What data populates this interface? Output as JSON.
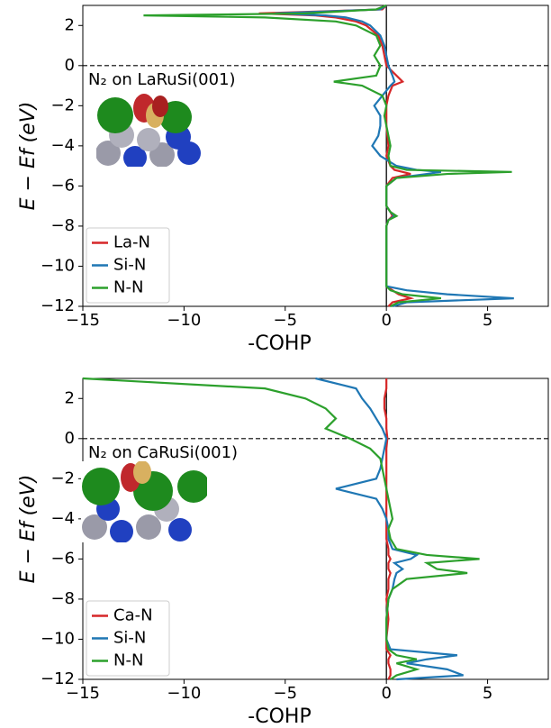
{
  "chart_data": [
    {
      "type": "line",
      "annotation": "N₂ on LaRuSi(001)",
      "xlabel": "-COHP",
      "ylabel": "E − Ef (eV)",
      "xlim": [
        -15,
        8
      ],
      "ylim": [
        -12,
        3
      ],
      "xticks": [
        {
          "value": -15,
          "label": "−15"
        },
        {
          "value": -10,
          "label": "−10"
        },
        {
          "value": -5,
          "label": "−5"
        },
        0,
        5
      ],
      "yticks": [
        {
          "value": -12,
          "label": "−12"
        },
        {
          "value": -10,
          "label": "−10"
        },
        {
          "value": -8,
          "label": "−8"
        },
        {
          "value": -6,
          "label": "−6"
        },
        {
          "value": -4,
          "label": "−4"
        },
        {
          "value": -2,
          "label": "−2"
        },
        0,
        2
      ],
      "legend": "lower left",
      "y": [
        3,
        2.8,
        2.6,
        2.5,
        2.4,
        2.2,
        2,
        1.5,
        1,
        0.5,
        0,
        -0.5,
        -0.8,
        -1,
        -1.5,
        -2,
        -2.5,
        -3,
        -3.5,
        -4,
        -4.5,
        -5,
        -5.2,
        -5.3,
        -5.4,
        -5.6,
        -6,
        -7,
        -7.3,
        -7.5,
        -7.7,
        -8,
        -9,
        -10,
        -11,
        -11.2,
        -11.4,
        -11.6,
        -11.8,
        -12
      ],
      "series": [
        {
          "name": "La-N",
          "color": "#d62728",
          "values": [
            0,
            -0.2,
            -6.3,
            -3.5,
            -2.5,
            -1.5,
            -1,
            -0.4,
            -0.2,
            -0.1,
            0,
            0.5,
            0.8,
            0.3,
            0.1,
            0,
            0,
            0,
            0.05,
            0.1,
            0,
            0.2,
            0.4,
            0.8,
            1.2,
            0.3,
            0,
            0,
            0.2,
            0.3,
            0.1,
            0,
            0,
            0,
            0,
            0.3,
            0.6,
            1.2,
            0.3,
            0.1
          ]
        },
        {
          "name": "Si-N",
          "color": "#1f77b4",
          "values": [
            0,
            -0.3,
            -5.5,
            -3,
            -2,
            -1.2,
            -0.8,
            -0.3,
            -0.1,
            0,
            0.1,
            0.3,
            0.4,
            0.2,
            -0.2,
            -0.6,
            -0.3,
            -0.3,
            -0.4,
            -0.7,
            -0.3,
            0.5,
            1.5,
            2.7,
            2,
            0.5,
            0,
            0,
            0.2,
            0.4,
            0.1,
            0,
            0,
            0,
            0,
            1,
            3,
            6.3,
            1,
            0.3
          ]
        },
        {
          "name": "N-N",
          "color": "#2ca02c",
          "values": [
            0,
            -0.5,
            -4,
            -12,
            -6,
            -2.5,
            -1.5,
            -0.5,
            -0.3,
            -0.6,
            -0.3,
            -0.5,
            -2.6,
            -1.2,
            -0.2,
            0,
            -0.1,
            0,
            0.1,
            0.2,
            0.1,
            0.2,
            1,
            6.2,
            3,
            0.5,
            0,
            0,
            0.2,
            0.5,
            0.1,
            0,
            0,
            0,
            0,
            0.2,
            0.8,
            2.7,
            0.6,
            0.2
          ]
        }
      ]
    },
    {
      "type": "line",
      "annotation": "N₂ on CaRuSi(001)",
      "xlabel": "-COHP",
      "ylabel": "E − Ef (eV)",
      "xlim": [
        -15,
        8
      ],
      "ylim": [
        -12,
        3
      ],
      "xticks": [
        {
          "value": -15,
          "label": "−15"
        },
        {
          "value": -10,
          "label": "−10"
        },
        {
          "value": -5,
          "label": "−5"
        },
        0,
        5
      ],
      "yticks": [
        {
          "value": -12,
          "label": "−12"
        },
        {
          "value": -10,
          "label": "−10"
        },
        {
          "value": -8,
          "label": "−8"
        },
        {
          "value": -6,
          "label": "−6"
        },
        {
          "value": -4,
          "label": "−4"
        },
        {
          "value": -2,
          "label": "−2"
        },
        0,
        2
      ],
      "legend": "lower left",
      "y": [
        3,
        2.5,
        2,
        1.5,
        1,
        0.5,
        0,
        -0.5,
        -1,
        -1.5,
        -2,
        -2.5,
        -3,
        -3.5,
        -4,
        -4.5,
        -5,
        -5.5,
        -5.8,
        -6,
        -6.2,
        -6.5,
        -6.7,
        -7,
        -7.5,
        -8,
        -9,
        -10,
        -10.5,
        -10.8,
        -11,
        -11.2,
        -11.5,
        -11.8,
        -12
      ],
      "series": [
        {
          "name": "Ca-N",
          "color": "#d62728",
          "values": [
            0,
            0,
            -0.1,
            -0.1,
            0,
            0,
            0.05,
            0,
            0,
            0,
            0,
            0,
            0,
            0,
            0,
            0,
            0,
            0.1,
            0.1,
            0.2,
            0.1,
            0.1,
            0.2,
            0.1,
            0.1,
            0,
            0.1,
            0,
            0,
            0.2,
            0.1,
            0.1,
            0.2,
            0.2,
            0.1
          ]
        },
        {
          "name": "Si-N",
          "color": "#1f77b4",
          "values": [
            -3.5,
            -1.5,
            -1.2,
            -0.8,
            -0.5,
            -0.2,
            0,
            -0.1,
            -0.2,
            -0.3,
            -0.5,
            -2.5,
            -0.5,
            -0.2,
            0,
            0.1,
            0.1,
            0.3,
            1.5,
            1.2,
            0.4,
            0.8,
            0.5,
            0.4,
            0.3,
            0.1,
            0,
            0,
            0.2,
            3.5,
            2,
            1,
            3,
            3.8,
            0.5
          ]
        },
        {
          "name": "N-N",
          "color": "#2ca02c",
          "values": [
            -15,
            -6,
            -4,
            -3,
            -2.5,
            -3,
            -1.8,
            -0.8,
            -0.3,
            -0.2,
            -0.1,
            0,
            0.1,
            0.2,
            0.3,
            0.1,
            0.2,
            0.5,
            2,
            4.6,
            2,
            2.5,
            4,
            1,
            0.3,
            0.1,
            0,
            0,
            0.1,
            0.5,
            1.5,
            0.5,
            1.5,
            0.5,
            0.2
          ]
        }
      ]
    }
  ]
}
